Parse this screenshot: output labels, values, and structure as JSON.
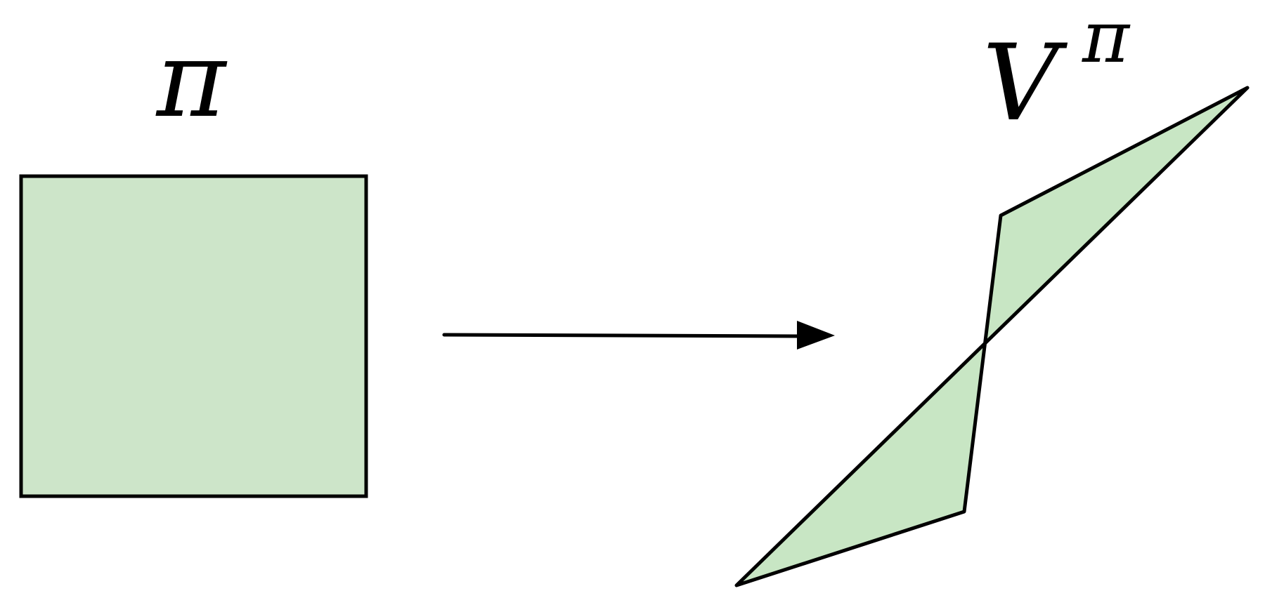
{
  "diagram": {
    "policy_label": "π",
    "value_label_base": "V",
    "value_label_superscript": "π",
    "colors": {
      "policy_fill": "#cde5c9",
      "value_fill": "#c8e6c4",
      "stroke": "#000000",
      "background": "#ffffff"
    }
  }
}
